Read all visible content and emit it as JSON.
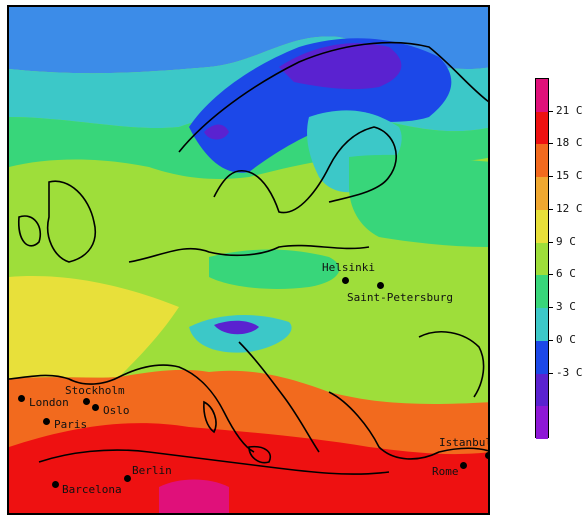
{
  "map": {
    "cities": [
      {
        "name": "Helsinki"
      },
      {
        "name": "Saint-Petersburg"
      },
      {
        "name": "London"
      },
      {
        "name": "Stockholm"
      },
      {
        "name": "Oslo"
      },
      {
        "name": "Paris"
      },
      {
        "name": "Berlin"
      },
      {
        "name": "Barcelona"
      },
      {
        "name": "Istanbul"
      },
      {
        "name": "Rome"
      }
    ]
  },
  "colorbar": {
    "labels": [
      "21 C",
      "18 C",
      "15 C",
      "12 C",
      "9 C",
      "6 C",
      "3 C",
      "0 C",
      "-3 C"
    ],
    "colors": [
      "#e0107a",
      "#ee1111",
      "#f26a1e",
      "#f0a830",
      "#e8e03a",
      "#9ede3a",
      "#38d67a",
      "#3cc8c8",
      "#1c48e8",
      "#5a22d0",
      "#8e18d6"
    ]
  }
}
